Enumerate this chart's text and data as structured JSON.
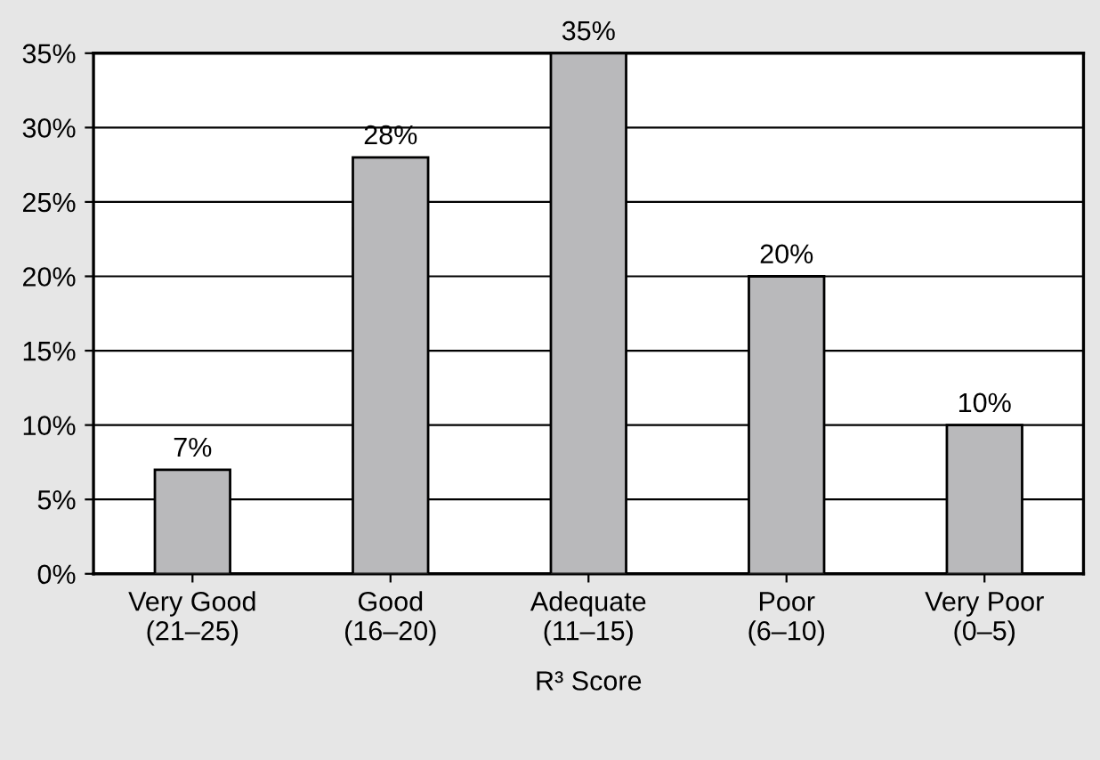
{
  "chart_data": {
    "type": "bar",
    "xlabel": "R³ Score",
    "categories": [
      "Very Good\n(21–25)",
      "Good\n(16–20)",
      "Adequate\n(11–15)",
      "Poor\n(6–10)",
      "Very Poor\n(0–5)"
    ],
    "values": [
      7,
      28,
      35,
      20,
      10
    ],
    "value_labels": [
      "7%",
      "28%",
      "35%",
      "20%",
      "10%"
    ],
    "color": "#b9b9bb",
    "ylim": [
      0,
      35
    ],
    "yticks": [
      {
        "value": 0,
        "label": "0%"
      },
      {
        "value": 5,
        "label": "5%"
      },
      {
        "value": 10,
        "label": "10%"
      },
      {
        "value": 15,
        "label": "15%"
      },
      {
        "value": 20,
        "label": "20%"
      },
      {
        "value": 25,
        "label": "25%"
      },
      {
        "value": 30,
        "label": "30%"
      },
      {
        "value": 35,
        "label": "35%"
      }
    ],
    "grid": "y"
  }
}
